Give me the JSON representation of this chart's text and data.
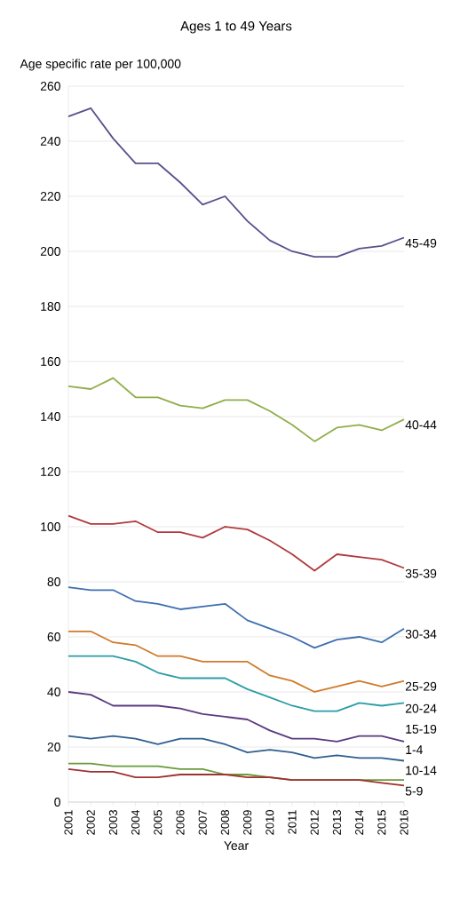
{
  "chart_data": {
    "type": "line",
    "title": "Ages 1 to 49 Years",
    "ylabel": "Age specific rate per 100,000",
    "xlabel": "Year",
    "categories": [
      "2001",
      "2002",
      "2003",
      "2004",
      "2005",
      "2006",
      "2007",
      "2008",
      "2009",
      "2010",
      "2011",
      "2012",
      "2013",
      "2014",
      "2015",
      "2016"
    ],
    "ylim": [
      0,
      260
    ],
    "yticks": [
      0,
      20,
      40,
      60,
      80,
      100,
      120,
      140,
      160,
      180,
      200,
      220,
      240,
      260
    ],
    "grid": "y",
    "marker": "none",
    "line_style": "solid",
    "series": [
      {
        "name": "45-49",
        "color": "#5b4f8c",
        "values": [
          249,
          252,
          241,
          232,
          232,
          225,
          217,
          220,
          211,
          204,
          200,
          198,
          198,
          201,
          202,
          205
        ]
      },
      {
        "name": "40-44",
        "color": "#8fae4a",
        "values": [
          151,
          150,
          154,
          147,
          147,
          144,
          143,
          146,
          146,
          142,
          137,
          131,
          136,
          137,
          135,
          139
        ]
      },
      {
        "name": "35-39",
        "color": "#b03a3e",
        "values": [
          104,
          101,
          101,
          102,
          98,
          98,
          96,
          100,
          99,
          95,
          90,
          84,
          90,
          89,
          88,
          85
        ]
      },
      {
        "name": "30-34",
        "color": "#3e6fb0",
        "values": [
          78,
          77,
          77,
          73,
          72,
          70,
          71,
          72,
          66,
          63,
          60,
          56,
          59,
          60,
          58,
          63
        ]
      },
      {
        "name": "25-29",
        "color": "#d07a2a",
        "values": [
          62,
          62,
          58,
          57,
          53,
          53,
          51,
          51,
          51,
          46,
          44,
          40,
          42,
          44,
          42,
          44
        ]
      },
      {
        "name": "20-24",
        "color": "#2a9da6",
        "values": [
          53,
          53,
          53,
          51,
          47,
          45,
          45,
          45,
          41,
          38,
          35,
          33,
          33,
          36,
          35,
          36
        ]
      },
      {
        "name": "15-19",
        "color": "#5a3a7e",
        "values": [
          40,
          39,
          35,
          35,
          35,
          34,
          32,
          31,
          30,
          26,
          23,
          23,
          22,
          24,
          24,
          22
        ]
      },
      {
        "name": "1-4",
        "color": "#2f5f8f",
        "values": [
          24,
          23,
          24,
          23,
          21,
          23,
          23,
          21,
          18,
          19,
          18,
          16,
          17,
          16,
          16,
          15
        ]
      },
      {
        "name": "10-14",
        "color": "#6a9a3a",
        "values": [
          14,
          14,
          13,
          13,
          13,
          12,
          12,
          10,
          10,
          9,
          8,
          8,
          8,
          8,
          8,
          8
        ]
      },
      {
        "name": "5-9",
        "color": "#a03030",
        "values": [
          12,
          11,
          11,
          9,
          9,
          10,
          10,
          10,
          9,
          9,
          8,
          8,
          8,
          8,
          7,
          6
        ]
      }
    ]
  }
}
